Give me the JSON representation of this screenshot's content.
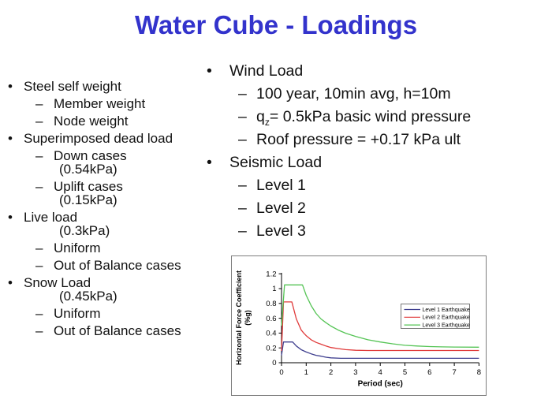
{
  "title": "Water Cube - Loadings",
  "title_color": "#3333cc",
  "left_list": {
    "items": [
      {
        "level": "1",
        "text": "Steel self weight"
      },
      {
        "level": "2",
        "text": "Member weight"
      },
      {
        "level": "2",
        "text": "Node weight"
      },
      {
        "level": "1",
        "text": "Superimposed dead load"
      },
      {
        "level": "2",
        "text": "Down cases"
      },
      {
        "level": "c",
        "text": "(0.54kPa)"
      },
      {
        "level": "2",
        "text": "Uplift cases"
      },
      {
        "level": "c",
        "text": "(0.15kPa)"
      },
      {
        "level": "1",
        "text": "Live load"
      },
      {
        "level": "c",
        "text": "(0.3kPa)"
      },
      {
        "level": "2",
        "text": "Uniform"
      },
      {
        "level": "2",
        "text": "Out of Balance cases"
      },
      {
        "level": "1",
        "text": "Snow Load"
      },
      {
        "level": "c",
        "text": "(0.45kPa)"
      },
      {
        "level": "2",
        "text": "Uniform"
      },
      {
        "level": "2",
        "text": "Out of Balance cases"
      }
    ]
  },
  "right_list": {
    "items": [
      {
        "level": "1",
        "text": "Wind Load"
      },
      {
        "level": "2",
        "text": "100 year, 10min avg, h=10m"
      },
      {
        "level": "2",
        "parts": [
          {
            "t": "q"
          },
          {
            "t": "z",
            "sub": true
          },
          {
            "t": "= 0.5kPa basic wind pressure"
          }
        ]
      },
      {
        "level": "2",
        "text": "Roof pressure = +0.17 kPa ult"
      },
      {
        "level": "1",
        "text": "Seismic Load"
      },
      {
        "level": "2",
        "text": "Level 1"
      },
      {
        "level": "2",
        "text": "Level 2"
      },
      {
        "level": "2",
        "text": "Level 3"
      }
    ]
  },
  "chart_data": {
    "type": "line",
    "title": "",
    "xlabel": "Period (sec)",
    "ylabel": "Horizontal Force Coefficient (%g)",
    "ylabel_line1": "Horizontal Force Coefficient",
    "ylabel_line2": "(%g)",
    "xlim": [
      0,
      8
    ],
    "ylim": [
      0,
      1.2
    ],
    "x_ticks": [
      0,
      1,
      2,
      3,
      4,
      5,
      6,
      7,
      8
    ],
    "y_ticks": [
      0,
      0.2,
      0.4,
      0.6,
      0.8,
      1,
      1.2
    ],
    "y_tick_labels": [
      "0",
      "0.2",
      "0.4",
      "0.6",
      "0.8",
      "1",
      "1.2"
    ],
    "grid": false,
    "legend_position": "middle-right",
    "axis_color": "#000000",
    "panel_border_color": "#7d7d7d",
    "series": [
      {
        "name": "Level 1 Earthquake",
        "color": "#3f3f8f",
        "points": [
          [
            0,
            0.1
          ],
          [
            0.08,
            0.28
          ],
          [
            0.45,
            0.28
          ],
          [
            0.6,
            0.225
          ],
          [
            0.8,
            0.175
          ],
          [
            1.0,
            0.145
          ],
          [
            1.2,
            0.12
          ],
          [
            1.4,
            0.1
          ],
          [
            1.6,
            0.088
          ],
          [
            1.8,
            0.075
          ],
          [
            2.0,
            0.066
          ],
          [
            2.4,
            0.06
          ],
          [
            8.0,
            0.06
          ]
        ]
      },
      {
        "name": "Level 2 Earthquake",
        "color": "#e03a3a",
        "points": [
          [
            0,
            0.16
          ],
          [
            0.08,
            0.82
          ],
          [
            0.42,
            0.82
          ],
          [
            0.6,
            0.59
          ],
          [
            0.8,
            0.44
          ],
          [
            0.9,
            0.4
          ],
          [
            1.0,
            0.365
          ],
          [
            1.2,
            0.31
          ],
          [
            1.4,
            0.275
          ],
          [
            1.6,
            0.25
          ],
          [
            1.8,
            0.225
          ],
          [
            2.0,
            0.205
          ],
          [
            2.3,
            0.19
          ],
          [
            2.6,
            0.177
          ],
          [
            3.0,
            0.168
          ],
          [
            3.5,
            0.165
          ],
          [
            8.0,
            0.165
          ]
        ]
      },
      {
        "name": "Level 3 Earthquake",
        "color": "#55c455",
        "points": [
          [
            0,
            0.5
          ],
          [
            0.12,
            1.05
          ],
          [
            0.85,
            1.05
          ],
          [
            1.0,
            0.91
          ],
          [
            1.2,
            0.77
          ],
          [
            1.4,
            0.665
          ],
          [
            1.6,
            0.59
          ],
          [
            1.8,
            0.54
          ],
          [
            2.0,
            0.495
          ],
          [
            2.3,
            0.44
          ],
          [
            2.6,
            0.398
          ],
          [
            3.0,
            0.355
          ],
          [
            3.5,
            0.31
          ],
          [
            4.0,
            0.28
          ],
          [
            4.5,
            0.255
          ],
          [
            5.0,
            0.235
          ],
          [
            5.5,
            0.225
          ],
          [
            6.0,
            0.218
          ],
          [
            6.5,
            0.214
          ],
          [
            7.0,
            0.212
          ],
          [
            8.0,
            0.21
          ]
        ]
      }
    ]
  }
}
